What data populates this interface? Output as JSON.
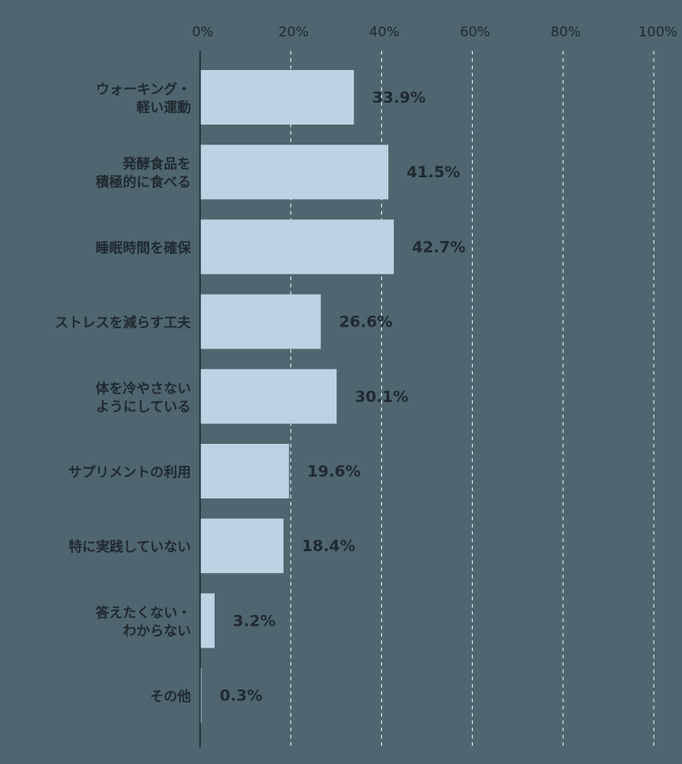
{
  "chart_data": {
    "type": "bar",
    "orientation": "horizontal",
    "title": "",
    "xlabel": "",
    "ylabel": "",
    "xlim": [
      0,
      100
    ],
    "x_ticks": [
      "0%",
      "20%",
      "40%",
      "60%",
      "80%",
      "100%"
    ],
    "grid": "vertical-dashed",
    "colors": {
      "background": "#4f6670",
      "bar": "#bcd3e3",
      "text": "#1f2a30",
      "axis": "#1f2a30",
      "grid": "#e6eef2"
    },
    "categories": [
      [
        "ウォーキング・",
        "軽い運動"
      ],
      [
        "発酵食品を",
        "積極的に食べる"
      ],
      [
        "睡眠時間を確保"
      ],
      [
        "ストレスを減らす工夫"
      ],
      [
        "体を冷やさない",
        "ようにしている"
      ],
      [
        "サプリメントの利用"
      ],
      [
        "特に実践していない"
      ],
      [
        "答えたくない・",
        "わからない"
      ],
      [
        "その他"
      ]
    ],
    "values": [
      33.9,
      41.5,
      42.7,
      26.6,
      30.1,
      19.6,
      18.4,
      3.2,
      0.3
    ],
    "value_labels": [
      "33.9%",
      "41.5%",
      "42.7%",
      "26.6%",
      "30.1%",
      "19.6%",
      "18.4%",
      "3.2%",
      "0.3%"
    ]
  }
}
